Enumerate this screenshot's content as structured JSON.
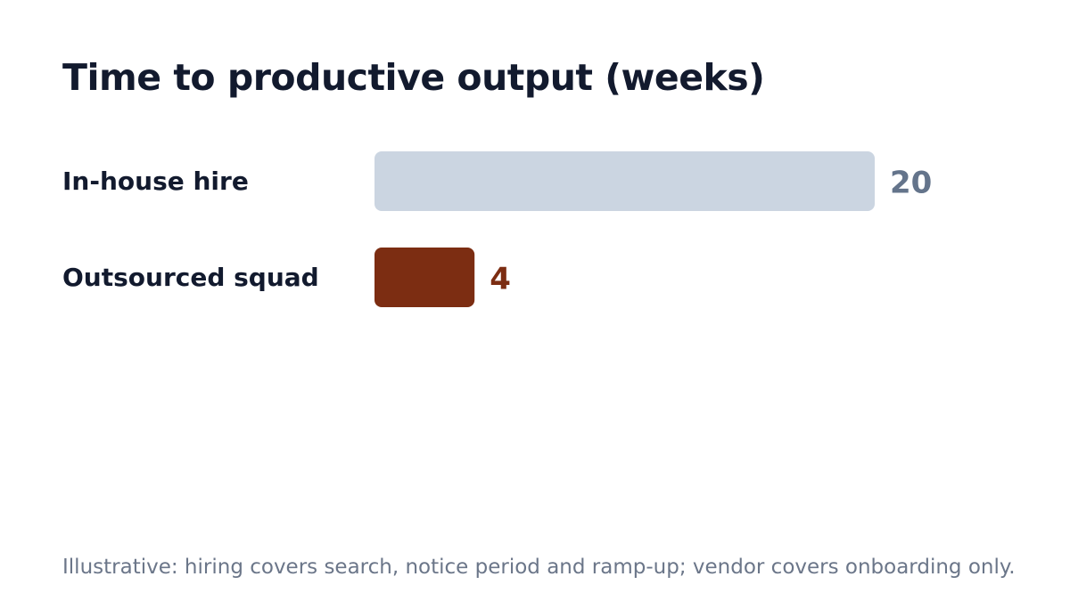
{
  "chart_data": {
    "type": "bar",
    "orientation": "horizontal",
    "title": "Time to productive output (weeks)",
    "categories": [
      "In-house hire",
      "Outsourced squad"
    ],
    "values": [
      20,
      4
    ],
    "colors": [
      "#cbd5e1",
      "#7c2d12"
    ],
    "value_label_colors": [
      "#64748b",
      "#7c2d12"
    ],
    "legend": "none",
    "grid": false,
    "xlim": [
      0,
      20
    ]
  },
  "footnote": "Illustrative: hiring covers search, notice period and ramp-up; vendor covers onboarding only."
}
